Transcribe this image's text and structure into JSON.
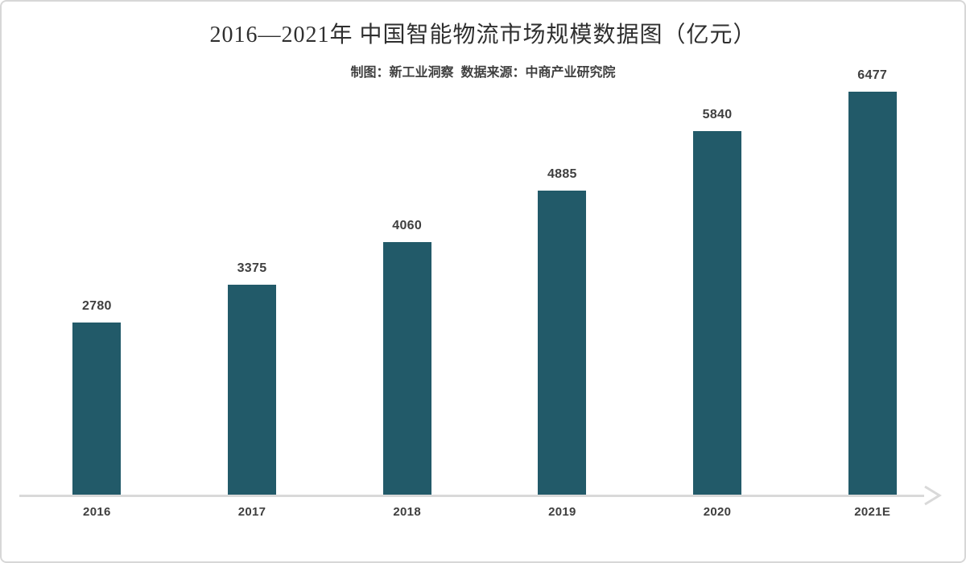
{
  "header": {
    "title": "2016—2021年 中国智能物流市场规模数据图（亿元）",
    "subtitle": "制图：新工业洞察  数据来源：中商产业研究院"
  },
  "chart_data": {
    "type": "bar",
    "title": "2016—2021年 中国智能物流市场规模数据图（亿元）",
    "subtitle": "制图：新工业洞察  数据来源：中商产业研究院",
    "categories": [
      "2016",
      "2017",
      "2018",
      "2019",
      "2020",
      "2021E"
    ],
    "values": [
      2780,
      3375,
      4060,
      4885,
      5840,
      6477
    ],
    "unit": "亿元",
    "xlabel": "",
    "ylabel": "",
    "ylim": [
      0,
      6700
    ],
    "grid": false,
    "legend": false,
    "data_labels": true,
    "bar_color": "#225a69",
    "label_color": "#3f3f3f",
    "axis_color": "#d9d9d9",
    "x_axis_arrow": "right"
  },
  "colors": {
    "bar": "#225a69",
    "text": "#3f3f3f",
    "title_text": "#2f2f2f",
    "axis": "#d9d9d9",
    "frame_border": "#d7d7d7",
    "background": "#ffffff"
  }
}
